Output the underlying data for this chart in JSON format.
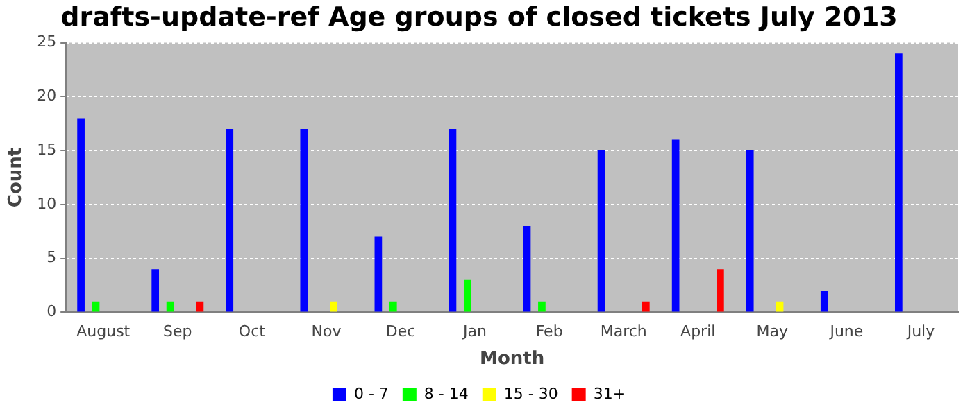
{
  "chart_data": {
    "type": "bar",
    "title": "drafts-update-ref Age groups of closed tickets July 2013",
    "xlabel": "Month",
    "ylabel": "Count",
    "categories": [
      "August",
      "Sep",
      "Oct",
      "Nov",
      "Dec",
      "Jan",
      "Feb",
      "March",
      "April",
      "May",
      "June",
      "July"
    ],
    "series": [
      {
        "name": "0 - 7",
        "color": "#0000ff",
        "values": [
          18,
          4,
          17,
          17,
          7,
          17,
          8,
          15,
          16,
          15,
          2,
          24
        ]
      },
      {
        "name": "8 - 14",
        "color": "#00ff00",
        "values": [
          1,
          1,
          0,
          0,
          1,
          3,
          1,
          0,
          0,
          0,
          0,
          0
        ]
      },
      {
        "name": "15 - 30",
        "color": "#ffff00",
        "values": [
          0,
          0,
          0,
          1,
          0,
          0,
          0,
          0,
          0,
          1,
          0,
          0
        ]
      },
      {
        "name": "31+",
        "color": "#ff0000",
        "values": [
          0,
          1,
          0,
          0,
          0,
          0,
          0,
          1,
          4,
          0,
          0,
          0
        ]
      }
    ],
    "ylim": [
      0,
      25
    ],
    "yticks": [
      0,
      5,
      10,
      15,
      20,
      25
    ],
    "grid": "y",
    "legend": "bottom"
  }
}
